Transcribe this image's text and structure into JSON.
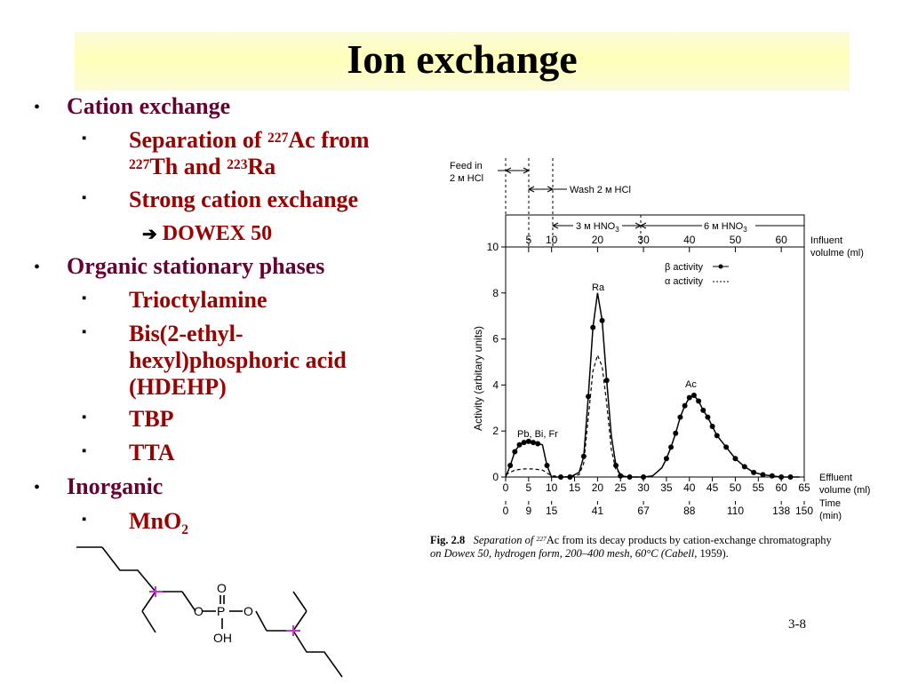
{
  "slide": {
    "title": "Ion exchange",
    "page_number": "3-8"
  },
  "bullets": {
    "cation": {
      "label": "Cation exchange",
      "sep_a": "Separation of ",
      "sep_sup1": "227",
      "sep_b": "Ac from",
      "sep_sup2": "227",
      "sep_c": "Th and ",
      "sep_sup3": "223",
      "sep_d": "Ra",
      "strong": "Strong cation exchange",
      "arrow": "➔",
      "dowex": "DOWEX 50"
    },
    "organic": {
      "label": "Organic stationary phases",
      "item1": "Trioctylamine",
      "item2_l1": "Bis(2-ethyl-",
      "item2_l2": "hexyl)phosphoric acid",
      "item2_l3": "(HDEHP)",
      "item3": "TBP",
      "item4": "TTA"
    },
    "inorganic": {
      "label": "Inorganic",
      "item1_a": "MnO",
      "item1_sub": "2"
    },
    "markers": {
      "level1": "•",
      "level2": "▪"
    }
  },
  "structure": {
    "atom_o": "O",
    "atom_p": "P",
    "atom_oh": "OH"
  },
  "figure": {
    "caption_fig": "Fig. 2.8",
    "caption_a": "Separation of ",
    "caption_sup": "227",
    "caption_b": "Ac from its decay products by cation-exchange chromatography",
    "caption_c": "on Dowex 50, hydrogen form, 200–400 mesh, 60°C (",
    "caption_d": "Cabell",
    "caption_e": ", 1959).",
    "top": {
      "feed_l1": "Feed in",
      "feed_l2": "2 м HCl",
      "wash": "Wash 2 м HCl",
      "hno3_3": "3 м HNO",
      "hno3_6": "6 м HNO",
      "sub3": "3",
      "influent_l1": "Influent",
      "influent_l2": "volulme (ml)"
    },
    "labels": {
      "legend_beta": "β activity",
      "legend_alpha": "α activity",
      "ra": "Ra",
      "ac": "Ac",
      "pbbifr": "Pb, Bi, Fr",
      "effluent_l1": "Effluent",
      "effluent_l2": "volume (ml)",
      "time_l1": "Time",
      "time_l2": "(min)"
    }
  },
  "chart_data": {
    "type": "line",
    "ylabel": "Activity (arbitary units)",
    "xlabel": "Effluent volume (ml)",
    "ylim": [
      0,
      10
    ],
    "xlim": [
      0,
      65
    ],
    "y_ticks": [
      "0",
      "2",
      "4",
      "6",
      "8",
      "10"
    ],
    "x_ticks": [
      "0",
      "5",
      "10",
      "15",
      "20",
      "25",
      "30",
      "35",
      "40",
      "45",
      "50",
      "55",
      "60",
      "65"
    ],
    "influent_ticks": [
      "5",
      "10",
      "20",
      "30",
      "40",
      "50",
      "60"
    ],
    "time_ticks": [
      {
        "x": 0,
        "t": "0"
      },
      {
        "x": 5,
        "t": "9"
      },
      {
        "x": 10,
        "t": "15"
      },
      {
        "x": 20,
        "t": "41"
      },
      {
        "x": 30,
        "t": "67"
      },
      {
        "x": 40,
        "t": "88"
      },
      {
        "x": 50,
        "t": "110"
      },
      {
        "x": 60,
        "t": "138"
      },
      {
        "x": 65,
        "t": "150"
      }
    ],
    "series": [
      {
        "name": "β activity",
        "style": "solid",
        "x": [
          0,
          1,
          2,
          3,
          4,
          5,
          6,
          7,
          8,
          9,
          10,
          12,
          14,
          16,
          17,
          18,
          19,
          20,
          21,
          22,
          23,
          24,
          25,
          27,
          30,
          32,
          34,
          35,
          36,
          37,
          38,
          39,
          40,
          41,
          42,
          43,
          44,
          45,
          46,
          48,
          50,
          52,
          54,
          56,
          58,
          60,
          62,
          64
        ],
        "y": [
          0,
          0.5,
          1.1,
          1.4,
          1.5,
          1.55,
          1.5,
          1.45,
          1.4,
          0.5,
          0,
          0,
          0,
          0.2,
          0.9,
          3.5,
          6.5,
          8.0,
          6.8,
          4.2,
          1.8,
          0.5,
          0.05,
          0,
          0,
          0.05,
          0.4,
          0.8,
          1.3,
          1.9,
          2.6,
          3.1,
          3.45,
          3.55,
          3.3,
          2.9,
          2.6,
          2.2,
          1.8,
          1.3,
          0.8,
          0.45,
          0.2,
          0.1,
          0.05,
          0,
          0,
          0
        ]
      },
      {
        "name": "α activity",
        "style": "dashed",
        "x": [
          0,
          2,
          4,
          6,
          8,
          10,
          14,
          16,
          17,
          18,
          19,
          20,
          21,
          22,
          23,
          24,
          26,
          30
        ],
        "y": [
          0.1,
          0.3,
          0.35,
          0.35,
          0.3,
          0.05,
          0,
          0.1,
          0.6,
          2.6,
          4.6,
          5.3,
          4.8,
          3.2,
          1.2,
          0.3,
          0,
          0
        ]
      }
    ],
    "markers": {
      "x": [
        1,
        2,
        3,
        4,
        5,
        6,
        7,
        9,
        12,
        14,
        17,
        18,
        19,
        21,
        22,
        24,
        25,
        27,
        30,
        35,
        36,
        37,
        38,
        39,
        40,
        41,
        42,
        43,
        44,
        45,
        46,
        48,
        50,
        52,
        54,
        56,
        58,
        60,
        62
      ],
      "y": [
        0.5,
        1.1,
        1.4,
        1.5,
        1.55,
        1.5,
        1.45,
        0.5,
        0,
        0,
        0.9,
        3.5,
        6.5,
        6.8,
        4.2,
        0.5,
        0.05,
        0,
        0,
        0.8,
        1.3,
        1.9,
        2.6,
        3.1,
        3.45,
        3.55,
        3.3,
        2.9,
        2.6,
        2.2,
        1.8,
        1.3,
        0.8,
        0.45,
        0.2,
        0.1,
        0.05,
        0,
        0
      ]
    }
  }
}
